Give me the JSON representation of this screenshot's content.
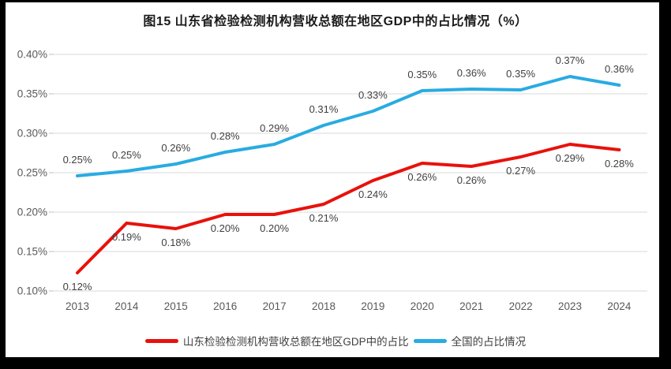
{
  "title": "图15  山东省检验检测机构营收总额在地区GDP中的占比情况（%）",
  "colors": {
    "frame": "#000000",
    "canvas": "#ffffff",
    "gridline": "#d9d9d9",
    "tick": "#bfbfbf",
    "axis_text": "#595959",
    "data_label_text": "#404040",
    "shandong_red": "#e8110c",
    "national_blue": "#29abe2"
  },
  "chart_data": {
    "type": "line",
    "x": [
      "2013",
      "2014",
      "2015",
      "2016",
      "2017",
      "2018",
      "2019",
      "2020",
      "2021",
      "2022",
      "2023",
      "2024"
    ],
    "series": [
      {
        "name": "山东检验检测机构营收总额在地区GDP中的占比",
        "color": "#e8110c",
        "values": [
          0.12,
          0.19,
          0.18,
          0.2,
          0.2,
          0.21,
          0.24,
          0.26,
          0.26,
          0.27,
          0.29,
          0.28
        ],
        "plot_values": [
          0.123,
          0.186,
          0.179,
          0.197,
          0.197,
          0.21,
          0.24,
          0.262,
          0.258,
          0.27,
          0.286,
          0.279
        ],
        "labels": [
          "0.12%",
          "0.19%",
          "0.18%",
          "0.20%",
          "0.20%",
          "0.21%",
          "0.24%",
          "0.26%",
          "0.26%",
          "0.27%",
          "0.29%",
          "0.28%"
        ],
        "label_side": "below"
      },
      {
        "name": "全国的占比情况",
        "color": "#29abe2",
        "values": [
          0.25,
          0.25,
          0.26,
          0.28,
          0.29,
          0.31,
          0.33,
          0.35,
          0.36,
          0.35,
          0.37,
          0.36
        ],
        "plot_values": [
          0.246,
          0.252,
          0.261,
          0.276,
          0.286,
          0.31,
          0.328,
          0.354,
          0.356,
          0.355,
          0.372,
          0.361
        ],
        "labels": [
          "0.25%",
          "0.25%",
          "0.26%",
          "0.28%",
          "0.29%",
          "0.31%",
          "0.33%",
          "0.35%",
          "0.36%",
          "0.35%",
          "0.37%",
          "0.36%"
        ],
        "label_side": "above"
      }
    ],
    "ylim": [
      0.1,
      0.4
    ],
    "ytick_labels": [
      "0.40%",
      "0.35%",
      "0.30%",
      "0.25%",
      "0.20%",
      "0.15%",
      "0.10%"
    ],
    "xlabel": "",
    "ylabel": "",
    "grid": true,
    "legend_position": "bottom"
  },
  "legend": {
    "items": [
      {
        "label": "山东检验检测机构营收总额在地区GDP中的占比",
        "color": "#e8110c"
      },
      {
        "label": "全国的占比情况",
        "color": "#29abe2"
      }
    ]
  }
}
